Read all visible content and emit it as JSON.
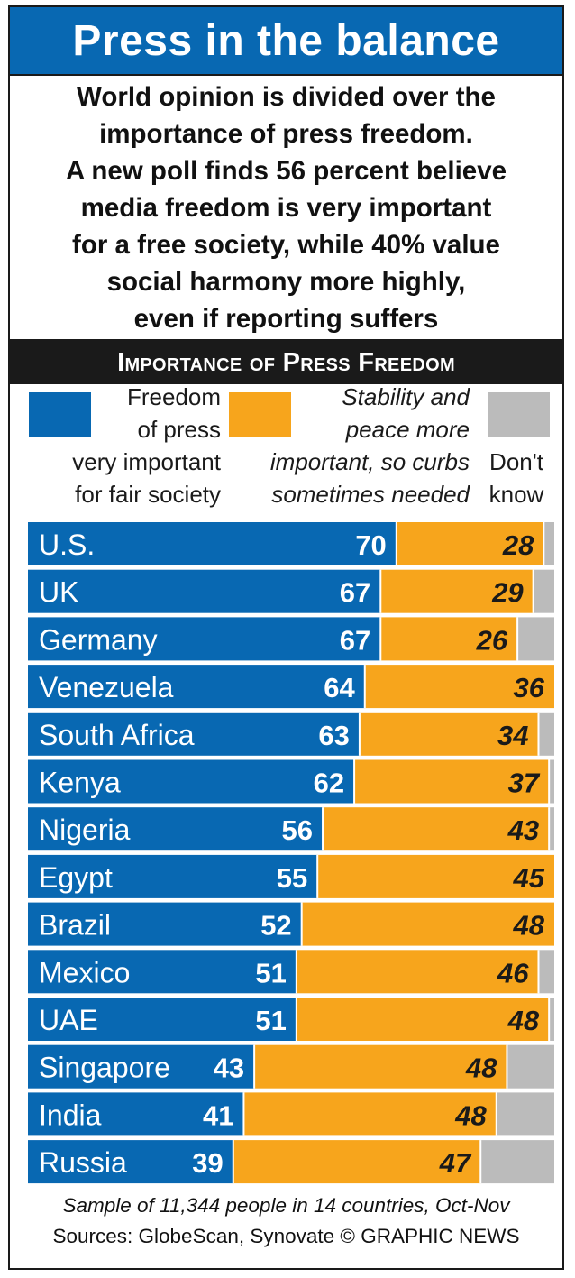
{
  "title": "Press in the balance",
  "intro_lines": [
    "World opinion is divided over the",
    "importance of press freedom.",
    "A new poll finds 56 percent believe",
    "media freedom is very important",
    "for a free society, while 40% value",
    "social harmony more highly,",
    "even if reporting suffers"
  ],
  "section_title": "Importance of Press Freedom",
  "legend": [
    {
      "lines": [
        "Freedom",
        "of press",
        "very important",
        "for fair society"
      ],
      "color": "#0868b2"
    },
    {
      "lines": [
        "Stability and",
        "peace more",
        "important, so curbs",
        "sometimes needed"
      ],
      "color": "#f7a51c"
    },
    {
      "lines": [
        "Don't",
        "know"
      ],
      "color": "#bbbbbb"
    }
  ],
  "chart_data": {
    "type": "bar",
    "orientation": "horizontal",
    "stacked": true,
    "title": "Importance of Press Freedom",
    "categories": [
      "U.S.",
      "UK",
      "Germany",
      "Venezuela",
      "South Africa",
      "Kenya",
      "Nigeria",
      "Egypt",
      "Brazil",
      "Mexico",
      "UAE",
      "Singapore",
      "India",
      "Russia"
    ],
    "series": [
      {
        "name": "Freedom of press very important for fair society",
        "color": "#0868b2",
        "values": [
          70,
          67,
          67,
          64,
          63,
          62,
          56,
          55,
          52,
          51,
          51,
          43,
          41,
          39
        ]
      },
      {
        "name": "Stability and peace more important, so curbs sometimes needed",
        "color": "#f7a51c",
        "values": [
          28,
          29,
          26,
          36,
          34,
          37,
          43,
          45,
          48,
          46,
          48,
          48,
          48,
          47
        ]
      },
      {
        "name": "Don't know",
        "color": "#bbbbbb",
        "values": [
          2,
          4,
          7,
          0,
          3,
          1,
          1,
          0,
          0,
          3,
          1,
          9,
          11,
          14
        ]
      }
    ],
    "xlim": [
      0,
      100
    ],
    "xlabel": "",
    "ylabel": "",
    "grid": false,
    "legend": "top"
  },
  "footer": {
    "note": "Sample of 11,344 people in 14 countries, Oct-Nov",
    "source": "Sources: GlobeScan, Synovate  © GRAPHIC NEWS"
  }
}
